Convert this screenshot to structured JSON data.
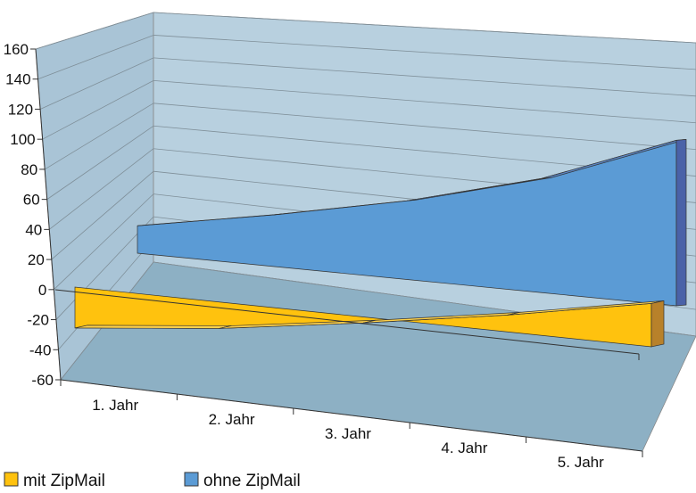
{
  "chart_data": {
    "type": "area",
    "view": "3d",
    "categories": [
      "1. Jahr",
      "2. Jahr",
      "3. Jahr",
      "4. Jahr",
      "5. Jahr"
    ],
    "series": [
      {
        "name": "mit ZipMail",
        "values": [
          -34,
          -22,
          -5,
          14,
          36
        ],
        "color": "#FFC20E"
      },
      {
        "name": "ohne ZipMail",
        "values": [
          24,
          45,
          69,
          100,
          145
        ],
        "color": "#5B9BD5"
      }
    ],
    "y_ticks": [
      "160",
      "140",
      "120",
      "100",
      "80",
      "60",
      "40",
      "20",
      "0",
      "-20",
      "-40",
      "-60"
    ],
    "ylim": [
      -60,
      160
    ],
    "grid": true,
    "legend_position": "bottom-left",
    "title": "",
    "xlabel": "",
    "ylabel": ""
  },
  "colors": {
    "back_wall": "#B8D0DF",
    "side_wall": "#A9C4D6",
    "floor": "#8DB0C4",
    "axis": "#333333"
  }
}
